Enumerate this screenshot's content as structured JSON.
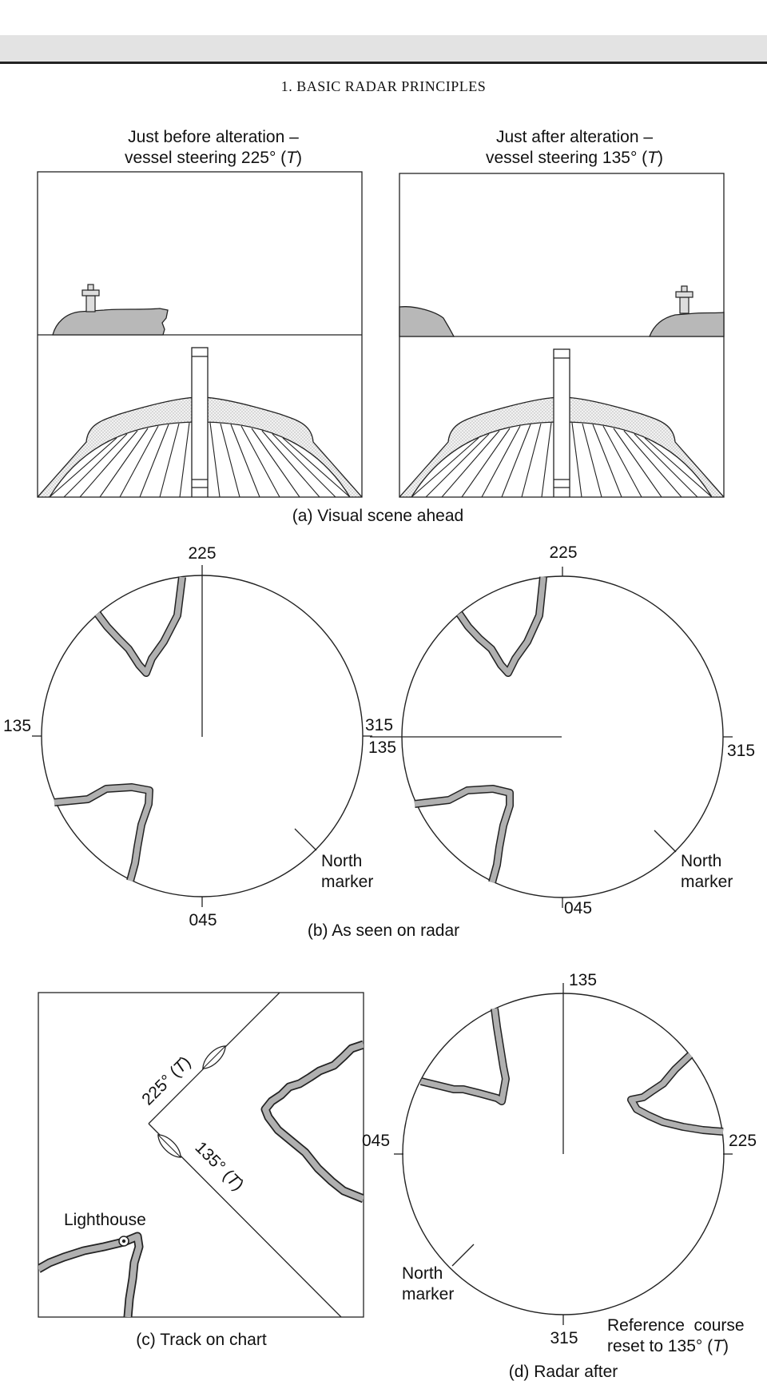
{
  "page": {
    "header": "1. BASIC RADAR PRINCIPLES"
  },
  "figure": {
    "visual": {
      "left_title_line1": "Just before alteration –",
      "left_title_line2_pre": "vessel steering 225° (",
      "left_title_line2_t": "T",
      "left_title_line2_post": ")",
      "right_title_line1": "Just after alteration –",
      "right_title_line2_pre": "vessel steering 135° (",
      "right_title_line2_t": "T",
      "right_title_line2_post": ")",
      "caption": "(a) Visual scene ahead"
    },
    "radar_before": {
      "top": "225",
      "left": "135",
      "right": "315",
      "bottom": "045",
      "north_line1": "North",
      "north_line2": "marker"
    },
    "radar_after": {
      "top": "225",
      "left": "135",
      "right_upper": "315",
      "right_lower": "315",
      "bottom": "045",
      "north_line1": "North",
      "north_line2": "marker"
    },
    "radar_caption": "(b) As seen on radar",
    "chart": {
      "track1_pre": "225° (",
      "track1_t": "T",
      "track1_post": ")",
      "track2_pre": "135° (",
      "track2_t": "T",
      "track2_post": ")",
      "lighthouse": "Lighthouse",
      "caption": "(c) Track on chart"
    },
    "radar_reset": {
      "top": "135",
      "left": "045",
      "right": "225",
      "bottom": "315",
      "north_line1": "North",
      "north_line2": "marker",
      "note_line1": "Reference  course",
      "note_line2_pre": "reset to 135° (",
      "note_line2_t": "T",
      "note_line2_post": ")",
      "caption": "(d) Radar after"
    }
  },
  "colors": {
    "land_fill": "#b8b8b8",
    "echo": "#b0b0b0",
    "ink": "#222222"
  }
}
